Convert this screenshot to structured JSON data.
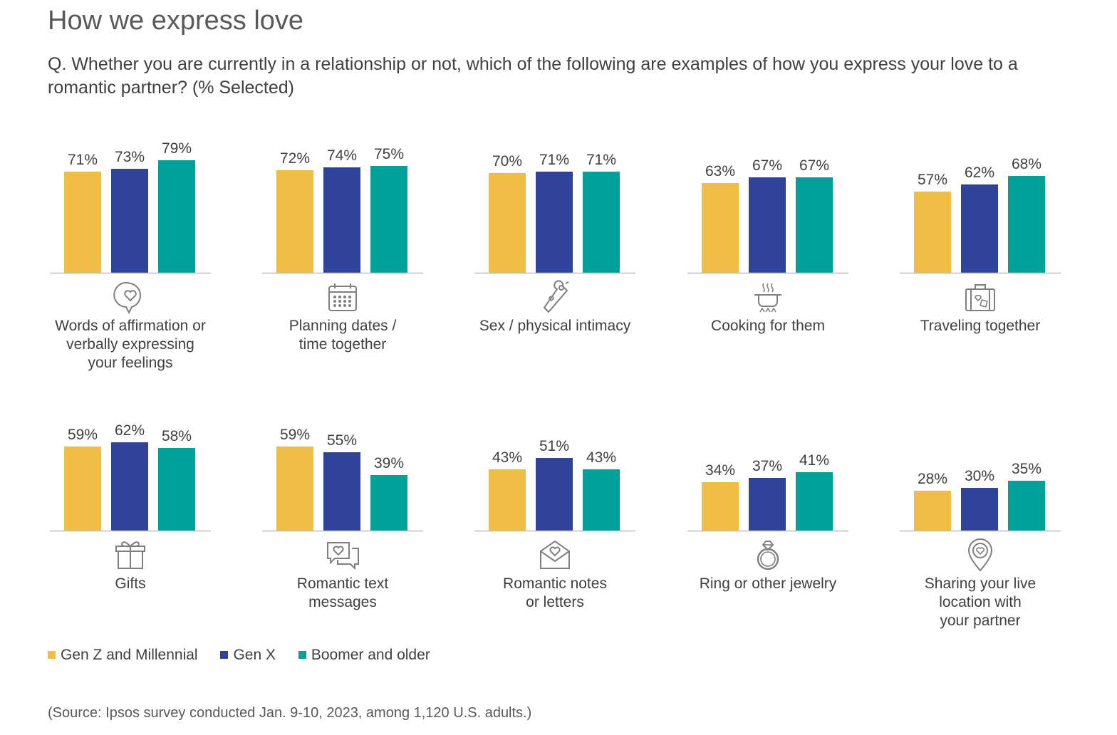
{
  "header": {
    "title": "How we express love",
    "question": "Q. Whether you are currently in a relationship or not, which of the following are examples of how you express your love to a romantic partner? (% Selected)"
  },
  "colors": {
    "gen_z": "#F0BE45",
    "gen_x": "#2E4399",
    "boomer": "#00A09B",
    "axis": "#BFBFBF",
    "icon": "#7F7F7F"
  },
  "chart_data": {
    "type": "bar",
    "title": "How we express love",
    "ylim": [
      0,
      100
    ],
    "series_names": [
      "Gen Z and Millennial",
      "Gen X",
      "Boomer and older"
    ],
    "value_format": "percent",
    "panels": [
      {
        "label_lines": [
          "Words of affirmation or",
          "verbally expressing",
          "your feelings"
        ],
        "icon": "heart-speech-bubble-icon",
        "values": [
          71,
          73,
          79
        ]
      },
      {
        "label_lines": [
          "Planning dates /",
          "time together"
        ],
        "icon": "calendar-icon",
        "values": [
          72,
          74,
          75
        ]
      },
      {
        "label_lines": [
          "Sex / physical intimacy"
        ],
        "icon": "door-hanger-icon",
        "values": [
          70,
          71,
          71
        ]
      },
      {
        "label_lines": [
          "Cooking for them"
        ],
        "icon": "cooking-pot-icon",
        "values": [
          63,
          67,
          67
        ]
      },
      {
        "label_lines": [
          "Traveling together"
        ],
        "icon": "suitcase-icon",
        "values": [
          57,
          62,
          68
        ]
      },
      {
        "label_lines": [
          "Gifts"
        ],
        "icon": "gift-icon",
        "values": [
          59,
          62,
          58
        ]
      },
      {
        "label_lines": [
          "Romantic text",
          "messages"
        ],
        "icon": "chat-bubbles-icon",
        "values": [
          59,
          55,
          39
        ]
      },
      {
        "label_lines": [
          "Romantic notes",
          "or letters"
        ],
        "icon": "envelope-heart-icon",
        "values": [
          43,
          51,
          43
        ]
      },
      {
        "label_lines": [
          "Ring or other jewelry"
        ],
        "icon": "ring-icon",
        "values": [
          34,
          37,
          41
        ]
      },
      {
        "label_lines": [
          "Sharing your live",
          "location with",
          "your partner"
        ],
        "icon": "location-pin-icon",
        "values": [
          28,
          30,
          35
        ]
      }
    ]
  },
  "legend": {
    "items": [
      {
        "label": "Gen Z and Millennial",
        "color_key": "gen_z"
      },
      {
        "label": "Gen X",
        "color_key": "gen_x"
      },
      {
        "label": "Boomer and older",
        "color_key": "boomer"
      }
    ]
  },
  "footer": {
    "source": "(Source: Ipsos survey conducted Jan. 9-10, 2023, among 1,120 U.S. adults.)"
  }
}
